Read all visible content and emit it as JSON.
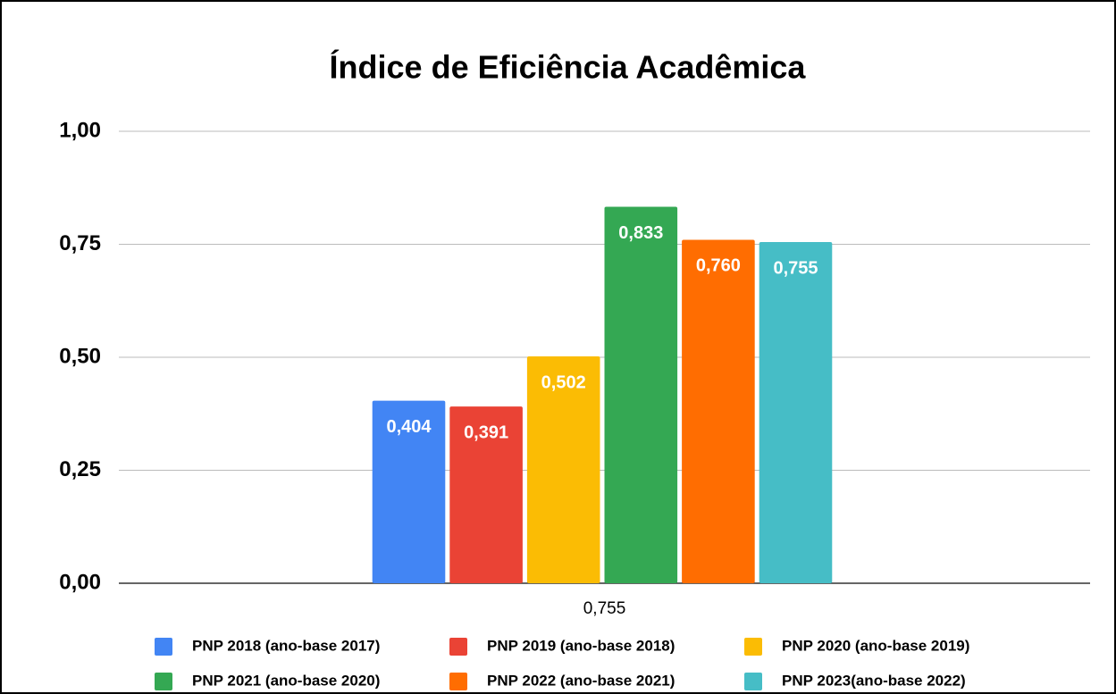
{
  "chart_data": {
    "type": "bar",
    "title": "Índice de Eficiência Acadêmica",
    "categories": [
      "0,755"
    ],
    "series": [
      {
        "name": "PNP 2018 (ano-base 2017)",
        "color": "#4285f4",
        "values": [
          0.404
        ],
        "value_labels": [
          "0,404"
        ]
      },
      {
        "name": "PNP 2019 (ano-base 2018)",
        "color": "#ea4335",
        "values": [
          0.391
        ],
        "value_labels": [
          "0,391"
        ]
      },
      {
        "name": "PNP 2020 (ano-base 2019)",
        "color": "#fbbc04",
        "values": [
          0.502
        ],
        "value_labels": [
          "0,502"
        ]
      },
      {
        "name": "PNP 2021 (ano-base 2020)",
        "color": "#34a853",
        "values": [
          0.833
        ],
        "value_labels": [
          "0,833"
        ]
      },
      {
        "name": "PNP 2022 (ano-base 2021)",
        "color": "#ff6d01",
        "values": [
          0.76
        ],
        "value_labels": [
          "0,760"
        ]
      },
      {
        "name": "PNP 2023(ano-base 2022)",
        "color": "#46bdc6",
        "values": [
          0.755
        ],
        "value_labels": [
          "0,755"
        ]
      }
    ],
    "ylim": [
      0,
      1
    ],
    "yticks": [
      {
        "value": 0,
        "label": "0,00"
      },
      {
        "value": 0.25,
        "label": "0,25"
      },
      {
        "value": 0.5,
        "label": "0,50"
      },
      {
        "value": 0.75,
        "label": "0,75"
      },
      {
        "value": 1,
        "label": "1,00"
      }
    ],
    "grid": true,
    "legend": "bottom"
  }
}
